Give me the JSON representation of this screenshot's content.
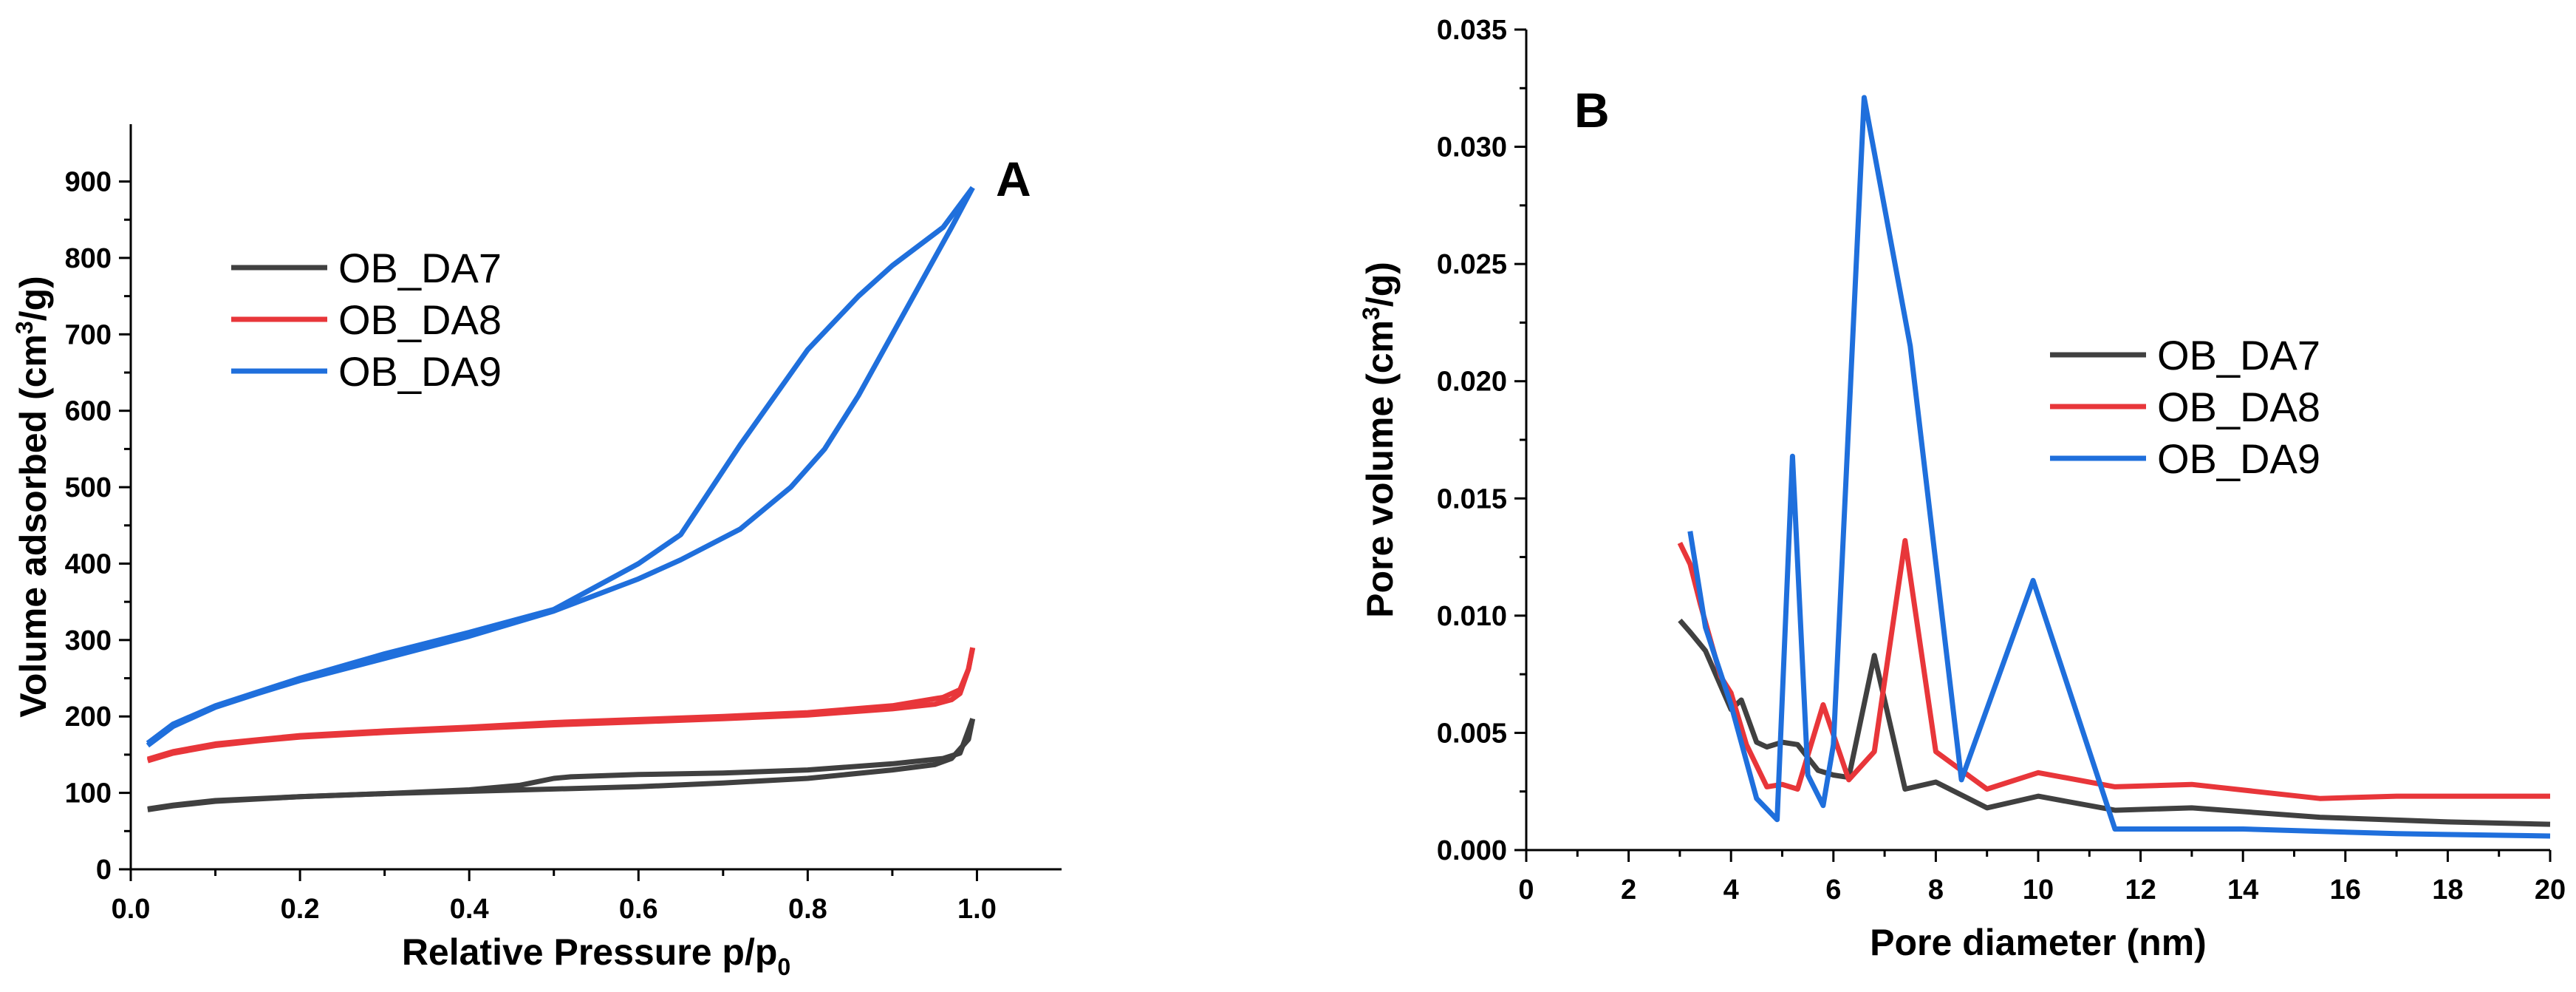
{
  "chart_data": [
    {
      "type": "line",
      "panel_label": "A",
      "xlabel_main": "Relative Pressure p/p",
      "xlabel_sub": "0",
      "ylabel_pre": "Volume adsorbed (cm",
      "ylabel_sup": "3",
      "ylabel_post": "/g)",
      "xlim": [
        0.0,
        1.1
      ],
      "ylim": [
        0,
        975
      ],
      "xticks": [
        "0.0",
        "0.2",
        "0.4",
        "0.6",
        "0.8",
        "1.0"
      ],
      "yticks": [
        "0",
        "100",
        "200",
        "300",
        "400",
        "500",
        "600",
        "700",
        "800",
        "900"
      ],
      "grid": false,
      "legend_position": "upper-left",
      "series": [
        {
          "name": "OB_DA7",
          "color": "#404040",
          "adsorption": [
            [
              0.02,
              78
            ],
            [
              0.05,
              83
            ],
            [
              0.1,
              89
            ],
            [
              0.15,
              92
            ],
            [
              0.2,
              95
            ],
            [
              0.3,
              99
            ],
            [
              0.4,
              102
            ],
            [
              0.5,
              105
            ],
            [
              0.6,
              108
            ],
            [
              0.7,
              113
            ],
            [
              0.8,
              119
            ],
            [
              0.9,
              130
            ],
            [
              0.95,
              137
            ],
            [
              0.97,
              145
            ],
            [
              0.99,
              170
            ],
            [
              0.995,
              197
            ]
          ],
          "desorption": [
            [
              0.995,
              197
            ],
            [
              0.98,
              152
            ],
            [
              0.96,
              145
            ],
            [
              0.9,
              138
            ],
            [
              0.8,
              130
            ],
            [
              0.7,
              126
            ],
            [
              0.6,
              124
            ],
            [
              0.52,
              121
            ],
            [
              0.5,
              119
            ],
            [
              0.46,
              110
            ],
            [
              0.4,
              104
            ],
            [
              0.3,
              99
            ],
            [
              0.2,
              95
            ],
            [
              0.1,
              90
            ],
            [
              0.05,
              84
            ],
            [
              0.02,
              79
            ]
          ]
        },
        {
          "name": "OB_DA8",
          "color": "#e8363a",
          "adsorption": [
            [
              0.02,
              142
            ],
            [
              0.05,
              152
            ],
            [
              0.1,
              162
            ],
            [
              0.15,
              168
            ],
            [
              0.2,
              173
            ],
            [
              0.3,
              179
            ],
            [
              0.4,
              184
            ],
            [
              0.5,
              189
            ],
            [
              0.6,
              193
            ],
            [
              0.7,
              197
            ],
            [
              0.8,
              202
            ],
            [
              0.9,
              210
            ],
            [
              0.95,
              216
            ],
            [
              0.97,
              222
            ],
            [
              0.98,
              230
            ],
            [
              0.99,
              262
            ],
            [
              0.995,
              290
            ]
          ],
          "desorption": [
            [
              0.995,
              290
            ],
            [
              0.99,
              262
            ],
            [
              0.98,
              235
            ],
            [
              0.96,
              225
            ],
            [
              0.9,
              214
            ],
            [
              0.8,
              205
            ],
            [
              0.7,
              200
            ],
            [
              0.6,
              196
            ],
            [
              0.5,
              192
            ],
            [
              0.4,
              186
            ],
            [
              0.3,
              181
            ],
            [
              0.2,
              175
            ],
            [
              0.1,
              164
            ],
            [
              0.05,
              154
            ],
            [
              0.02,
              144
            ]
          ]
        },
        {
          "name": "OB_DA9",
          "color": "#1f6fdc",
          "adsorption": [
            [
              0.02,
              162
            ],
            [
              0.05,
              187
            ],
            [
              0.1,
              212
            ],
            [
              0.15,
              230
            ],
            [
              0.2,
              247
            ],
            [
              0.3,
              276
            ],
            [
              0.4,
              305
            ],
            [
              0.5,
              338
            ],
            [
              0.6,
              380
            ],
            [
              0.65,
              405
            ],
            [
              0.72,
              445
            ],
            [
              0.78,
              500
            ],
            [
              0.82,
              550
            ],
            [
              0.86,
              620
            ],
            [
              0.9,
              700
            ],
            [
              0.94,
              780
            ],
            [
              0.97,
              840
            ],
            [
              0.995,
              892
            ]
          ],
          "desorption": [
            [
              0.995,
              892
            ],
            [
              0.96,
              840
            ],
            [
              0.9,
              790
            ],
            [
              0.86,
              750
            ],
            [
              0.8,
              680
            ],
            [
              0.72,
              555
            ],
            [
              0.65,
              438
            ],
            [
              0.6,
              400
            ],
            [
              0.5,
              340
            ],
            [
              0.4,
              310
            ],
            [
              0.3,
              282
            ],
            [
              0.2,
              250
            ],
            [
              0.1,
              214
            ],
            [
              0.05,
              190
            ],
            [
              0.02,
              165
            ]
          ]
        }
      ]
    },
    {
      "type": "line",
      "panel_label": "B",
      "xlabel": "Pore diameter (nm)",
      "ylabel_pre": "Pore volume (cm",
      "ylabel_sup": "3",
      "ylabel_post": "/g)",
      "xlim": [
        0,
        20
      ],
      "ylim": [
        0,
        0.035
      ],
      "xticks": [
        "0",
        "2",
        "4",
        "6",
        "8",
        "10",
        "12",
        "14",
        "16",
        "18",
        "20"
      ],
      "yticks": [
        "0.000",
        "0.005",
        "0.010",
        "0.015",
        "0.020",
        "0.025",
        "0.030",
        "0.035"
      ],
      "grid": false,
      "legend_position": "center-right",
      "series": [
        {
          "name": "OB_DA7",
          "color": "#404040",
          "points": [
            [
              3.0,
              0.0098
            ],
            [
              3.2,
              0.0093
            ],
            [
              3.5,
              0.0085
            ],
            [
              3.8,
              0.007
            ],
            [
              4.0,
              0.006
            ],
            [
              4.2,
              0.0064
            ],
            [
              4.5,
              0.0046
            ],
            [
              4.7,
              0.0044
            ],
            [
              5.0,
              0.0046
            ],
            [
              5.3,
              0.0045
            ],
            [
              5.7,
              0.0034
            ],
            [
              6.0,
              0.0032
            ],
            [
              6.3,
              0.0031
            ],
            [
              6.8,
              0.0083
            ],
            [
              7.4,
              0.0026
            ],
            [
              8.0,
              0.0029
            ],
            [
              9.0,
              0.0018
            ],
            [
              10.0,
              0.0023
            ],
            [
              11.5,
              0.0017
            ],
            [
              13.0,
              0.0018
            ],
            [
              15.5,
              0.0014
            ],
            [
              18.0,
              0.0012
            ],
            [
              20.0,
              0.0011
            ]
          ]
        },
        {
          "name": "OB_DA8",
          "color": "#e8363a",
          "points": [
            [
              3.0,
              0.0131
            ],
            [
              3.2,
              0.0122
            ],
            [
              3.4,
              0.0105
            ],
            [
              3.8,
              0.0074
            ],
            [
              4.0,
              0.0067
            ],
            [
              4.3,
              0.0045
            ],
            [
              4.7,
              0.0027
            ],
            [
              5.0,
              0.0028
            ],
            [
              5.3,
              0.0026
            ],
            [
              5.8,
              0.0062
            ],
            [
              6.3,
              0.003
            ],
            [
              6.8,
              0.0042
            ],
            [
              7.4,
              0.0132
            ],
            [
              8.0,
              0.0042
            ],
            [
              8.5,
              0.0034
            ],
            [
              9.0,
              0.0026
            ],
            [
              10.0,
              0.0033
            ],
            [
              11.5,
              0.0027
            ],
            [
              13.0,
              0.0028
            ],
            [
              15.5,
              0.0022
            ],
            [
              17.0,
              0.0023
            ],
            [
              20.0,
              0.0023
            ]
          ]
        },
        {
          "name": "OB_DA9",
          "color": "#1f6fdc",
          "points": [
            [
              3.2,
              0.0136
            ],
            [
              3.5,
              0.0095
            ],
            [
              4.0,
              0.0062
            ],
            [
              4.5,
              0.0022
            ],
            [
              4.9,
              0.0013
            ],
            [
              5.2,
              0.0168
            ],
            [
              5.5,
              0.0032
            ],
            [
              5.8,
              0.0019
            ],
            [
              6.0,
              0.0045
            ],
            [
              6.6,
              0.0321
            ],
            [
              7.5,
              0.0215
            ],
            [
              8.5,
              0.003
            ],
            [
              9.9,
              0.0115
            ],
            [
              11.5,
              0.0009
            ],
            [
              14.0,
              0.0009
            ],
            [
              17.0,
              0.0007
            ],
            [
              20.0,
              0.0006
            ]
          ]
        }
      ]
    }
  ]
}
